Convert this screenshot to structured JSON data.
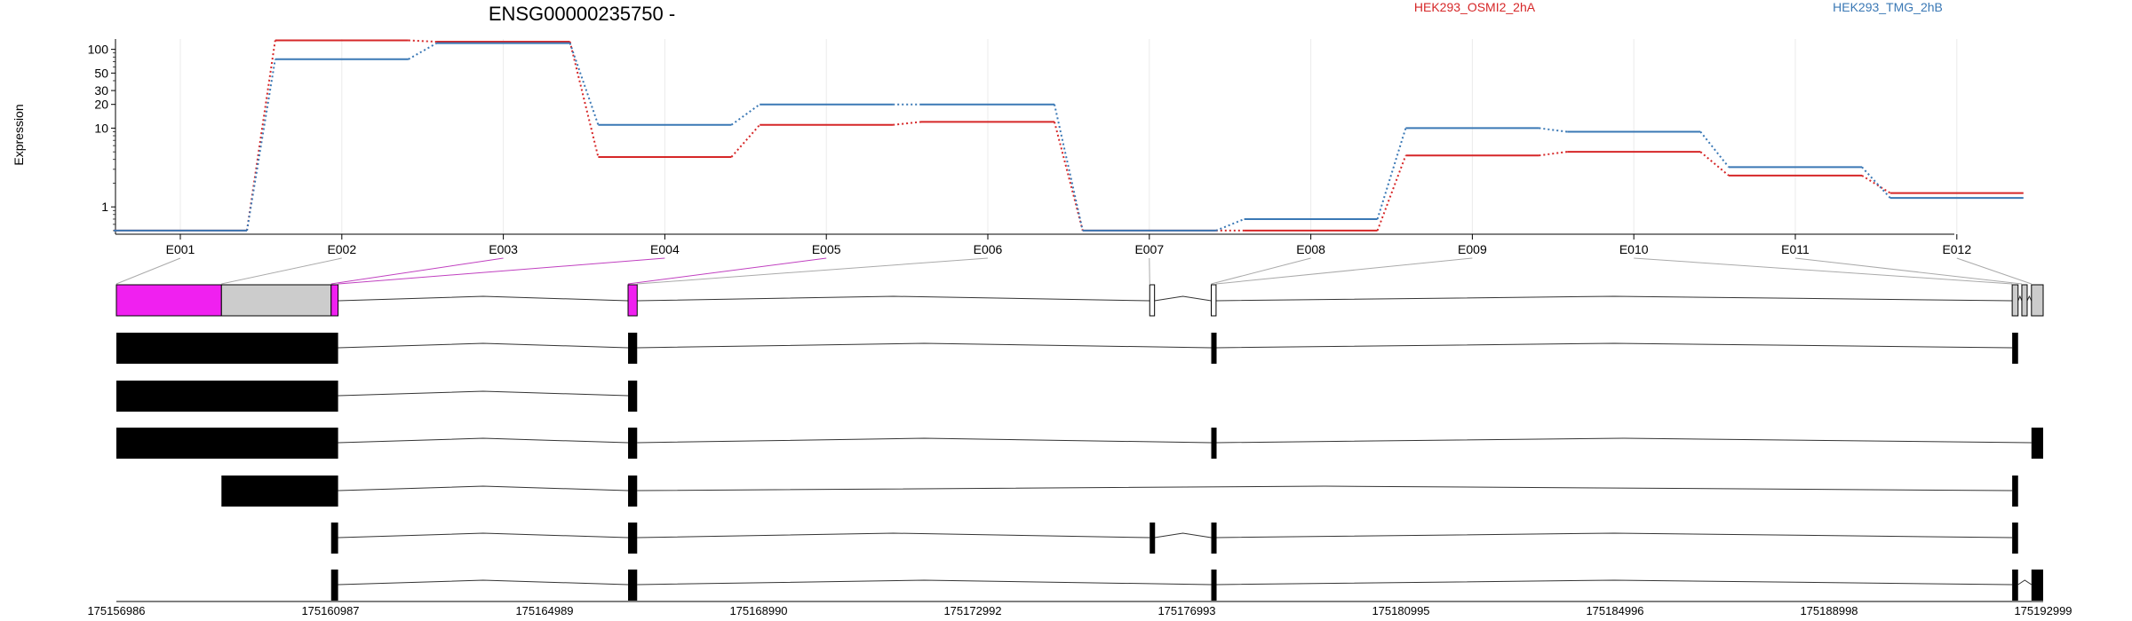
{
  "chart_data": {
    "type": "line",
    "title": "ENSG00000235750 -",
    "ylabel": "Expression",
    "y_scale": "log",
    "y_ticks": [
      1,
      10,
      20,
      30,
      50,
      100
    ],
    "ylim": [
      0.45,
      150
    ],
    "grid": "vertical",
    "categories": [
      "E001",
      "E002",
      "E003",
      "E004",
      "E005",
      "E006",
      "E007",
      "E008",
      "E009",
      "E010",
      "E011",
      "E012"
    ],
    "series": [
      {
        "name": "HEK293_OSMI2_2hA",
        "color": "#d62728",
        "values": [
          0.5,
          130,
          125,
          4.3,
          11,
          12,
          0.5,
          0.5,
          4.5,
          5,
          2.5,
          1.5
        ]
      },
      {
        "name": "HEK293_TMG_2hB",
        "color": "#3a78b5",
        "values": [
          0.5,
          75,
          120,
          11,
          20,
          20,
          0.5,
          0.7,
          10,
          9,
          3.2,
          1.3
        ]
      }
    ],
    "genome_axis": {
      "ticks": [
        "175156986",
        "175160987",
        "175164989",
        "175168990",
        "175172992",
        "175176993",
        "175180995",
        "175184996",
        "175188998",
        "175192999"
      ],
      "start": 175156986,
      "end": 175192999
    },
    "gene_model": {
      "segments": [
        {
          "start": 175156986,
          "end": 175158950,
          "fill": "#f020f0"
        },
        {
          "start": 175158950,
          "end": 175161000,
          "fill": "#cccccc"
        },
        {
          "start": 175161000,
          "end": 175161130,
          "fill": "#f020f0"
        },
        {
          "start": 175166550,
          "end": 175166720,
          "fill": "#f020f0"
        },
        {
          "start": 175176300,
          "end": 175176390,
          "fill": "#ffffff"
        },
        {
          "start": 175177450,
          "end": 175177540,
          "fill": "#ffffff"
        },
        {
          "start": 175192420,
          "end": 175192530,
          "fill": "#cccccc"
        },
        {
          "start": 175192600,
          "end": 175192700,
          "fill": "#cccccc"
        },
        {
          "start": 175192780,
          "end": 175192999,
          "fill": "#cccccc"
        }
      ],
      "exon_map": [
        {
          "bin": "E001",
          "pos": 175156986,
          "color": "#aaaaaa"
        },
        {
          "bin": "E002",
          "pos": 175158950,
          "color": "#aaaaaa"
        },
        {
          "bin": "E003",
          "pos": 175161000,
          "color": "#c040c0"
        },
        {
          "bin": "E004",
          "pos": 175161130,
          "color": "#c040c0"
        },
        {
          "bin": "E005",
          "pos": 175166550,
          "color": "#c040c0"
        },
        {
          "bin": "E006",
          "pos": 175166720,
          "color": "#aaaaaa"
        },
        {
          "bin": "E007",
          "pos": 175176300,
          "color": "#aaaaaa"
        },
        {
          "bin": "E008",
          "pos": 175177450,
          "color": "#aaaaaa"
        },
        {
          "bin": "E009",
          "pos": 175177540,
          "color": "#aaaaaa"
        },
        {
          "bin": "E010",
          "pos": 175192420,
          "color": "#aaaaaa"
        },
        {
          "bin": "E011",
          "pos": 175192600,
          "color": "#aaaaaa"
        },
        {
          "bin": "E012",
          "pos": 175192780,
          "color": "#aaaaaa"
        }
      ]
    },
    "transcripts": [
      [
        [
          175156986,
          175161130
        ],
        [
          175166550,
          175166720
        ],
        [
          175177450,
          175177540
        ],
        [
          175192420,
          175192530
        ]
      ],
      [
        [
          175156986,
          175161130
        ],
        [
          175166550,
          175166720
        ]
      ],
      [
        [
          175156986,
          175161130
        ],
        [
          175166550,
          175166720
        ],
        [
          175177450,
          175177540
        ],
        [
          175192780,
          175192999
        ]
      ],
      [
        [
          175158950,
          175161130
        ],
        [
          175166550,
          175166720
        ],
        [
          175192420,
          175192530
        ]
      ],
      [
        [
          175161000,
          175161130
        ],
        [
          175166550,
          175166720
        ],
        [
          175176300,
          175176390
        ],
        [
          175177450,
          175177540
        ],
        [
          175192420,
          175192530
        ]
      ],
      [
        [
          175161000,
          175161130
        ],
        [
          175166550,
          175166720
        ],
        [
          175177450,
          175177540
        ],
        [
          175192420,
          175192530
        ],
        [
          175192780,
          175192999
        ]
      ]
    ]
  }
}
